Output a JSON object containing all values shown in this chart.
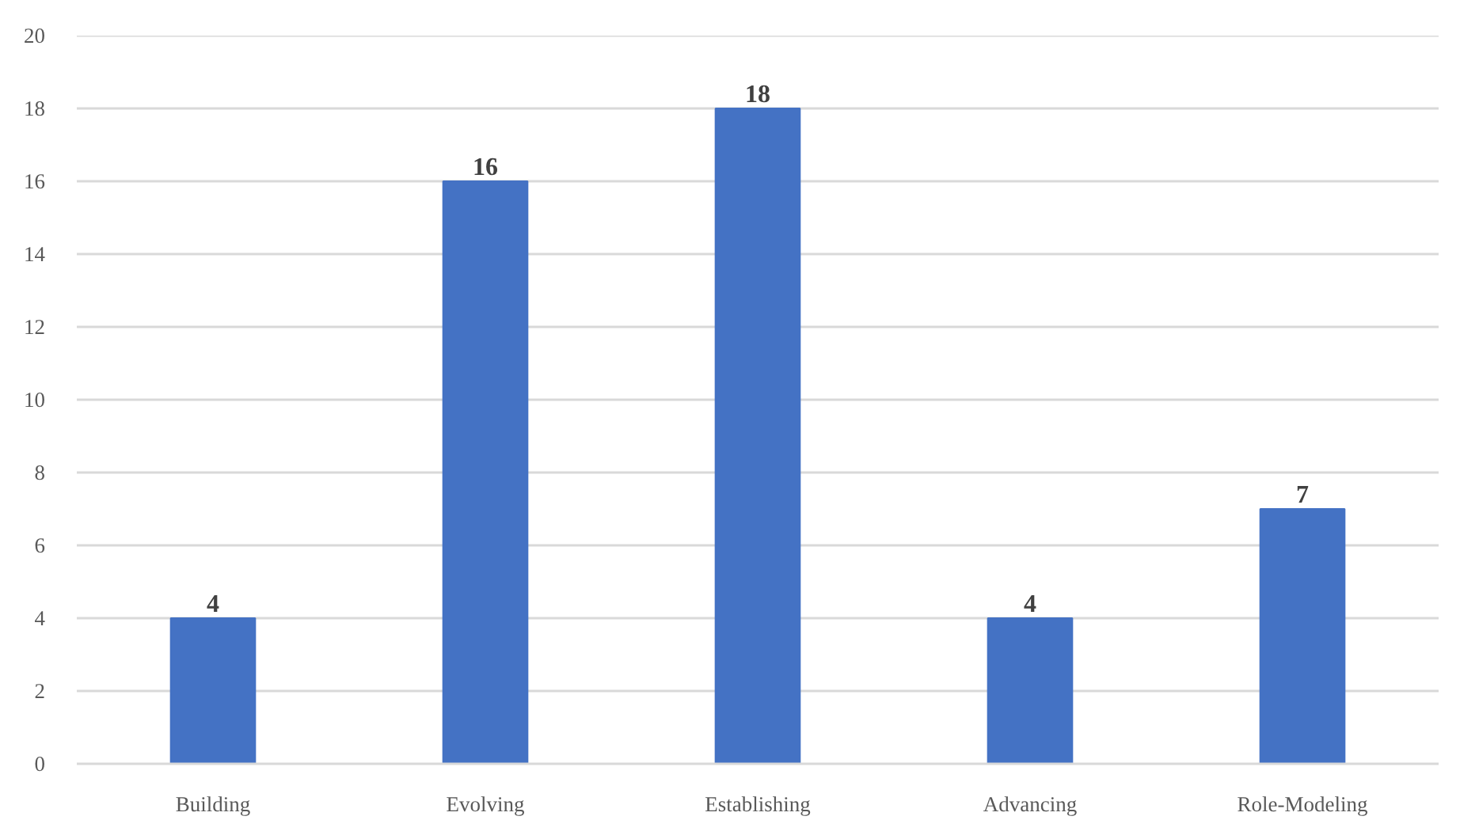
{
  "chart_data": {
    "type": "bar",
    "categories": [
      "Building",
      "Evolving",
      "Establishing",
      "Advancing",
      "Role-Modeling"
    ],
    "values": [
      4,
      16,
      18,
      4,
      7
    ],
    "color": "#4472c4",
    "ylim": [
      0,
      20
    ],
    "yticks": [
      0,
      2,
      4,
      6,
      8,
      10,
      12,
      14,
      16,
      18,
      20
    ],
    "grid": "y",
    "data_labels": true
  }
}
